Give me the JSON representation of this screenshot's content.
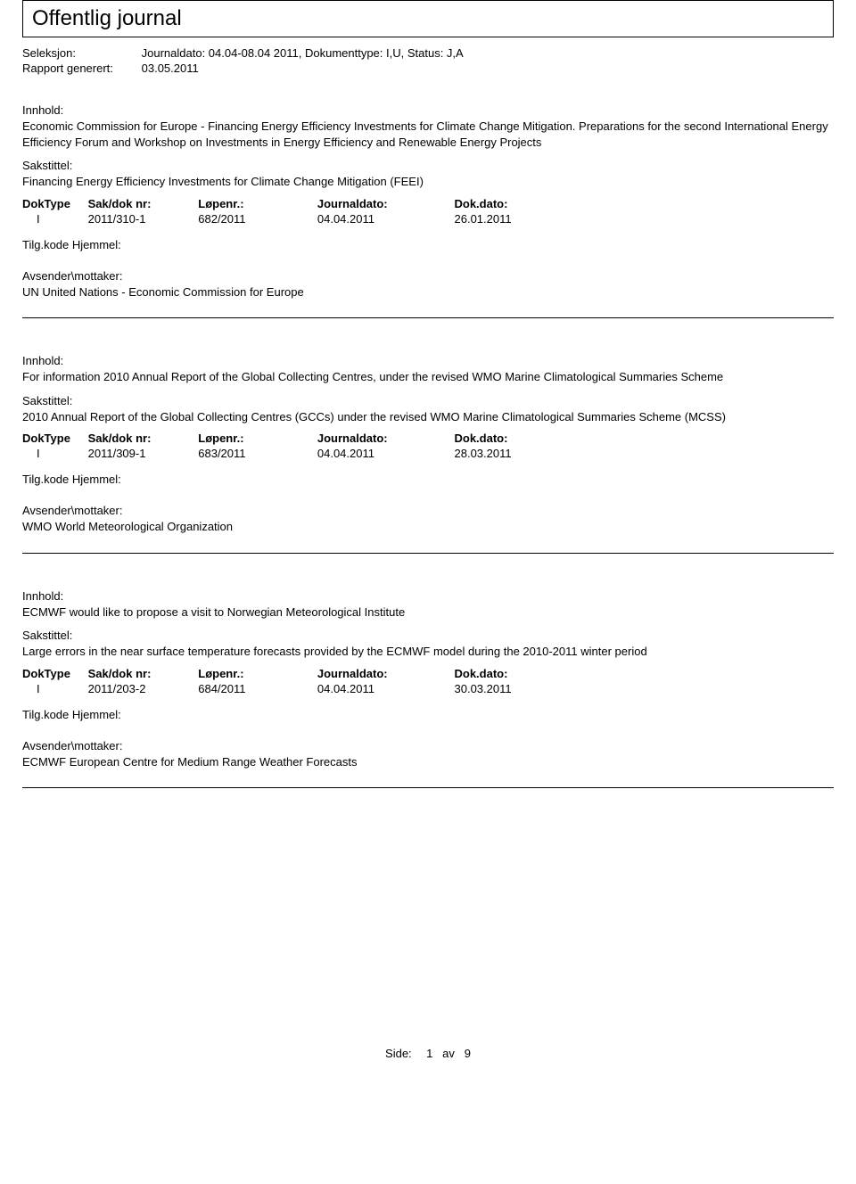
{
  "title": "Offentlig journal",
  "meta": {
    "seleksjon_label": "Seleksjon:",
    "seleksjon_value": "Journaldato: 04.04-08.04 2011, Dokumenttype: I,U, Status: J,A",
    "rapport_label": "Rapport generert:",
    "rapport_value": "03.05.2011"
  },
  "labels": {
    "innhold": "Innhold:",
    "sakstittel": "Sakstittel:",
    "avsender": "Avsender\\mottaker:",
    "tilg": "Tilg.kode Hjemmel:"
  },
  "cols": {
    "doktype": "DokType",
    "sakdok": "Sak/dok nr:",
    "lopenr": "Løpenr.:",
    "journaldato": "Journaldato:",
    "dokdato": "Dok.dato:"
  },
  "entries": [
    {
      "innhold": "Economic Commission for Europe - Financing Energy Efficiency Investments for Climate Change Mitigation. Preparations for the second International Energy Efficiency Forum and Workshop on Investments in Energy Efficiency and Renewable Energy Projects",
      "sakstittel": "Financing Energy Efficiency Investments for Climate Change Mitigation (FEEI)",
      "doktype": "I",
      "sakdok": "2011/310-1",
      "lopenr": "682/2011",
      "journaldato": "04.04.2011",
      "dokdato": "26.01.2011",
      "avsender": "UN United Nations - Economic Commission for Europe"
    },
    {
      "innhold": "For information 2010 Annual Report of the Global Collecting Centres, under the revised WMO Marine Climatological Summaries Scheme",
      "sakstittel": "2010 Annual Report of the Global Collecting Centres (GCCs) under the revised WMO Marine Climatological Summaries Scheme (MCSS)",
      "doktype": "I",
      "sakdok": "2011/309-1",
      "lopenr": "683/2011",
      "journaldato": "04.04.2011",
      "dokdato": "28.03.2011",
      "avsender": "WMO World Meteorological Organization"
    },
    {
      "innhold": "ECMWF would like to propose a visit to Norwegian Meteorological Institute",
      "sakstittel": "Large errors in the near surface temperature forecasts provided by the ECMWF model during the 2010-2011 winter period",
      "doktype": "I",
      "sakdok": "2011/203-2",
      "lopenr": "684/2011",
      "journaldato": "04.04.2011",
      "dokdato": "30.03.2011",
      "avsender": "ECMWF European Centre for Medium Range Weather Forecasts"
    }
  ],
  "footer": {
    "side_label": "Side:",
    "page": "1",
    "av_label": "av",
    "total": "9"
  }
}
